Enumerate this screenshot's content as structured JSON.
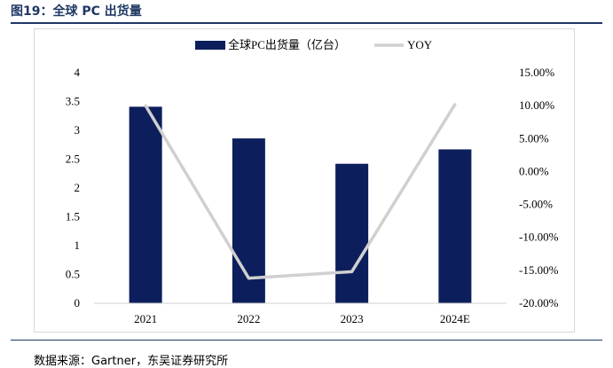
{
  "figure": {
    "title": "图19：全球 PC 出货量"
  },
  "source": "数据来源：Gartner，东吴证券研究所",
  "chart_data": {
    "type": "bar",
    "categories": [
      "2021",
      "2022",
      "2023",
      "2024E"
    ],
    "series": [
      {
        "name": "全球PC出货量（亿台）",
        "kind": "bar",
        "axis": "left",
        "color": "#0c1f5c",
        "values": [
          3.41,
          2.86,
          2.42,
          2.67
        ]
      },
      {
        "name": "YOY",
        "kind": "line",
        "axis": "right",
        "color": "#d0d0d0",
        "values": [
          10.0,
          -16.2,
          -15.2,
          10.2
        ]
      }
    ],
    "y_left": {
      "min": 0,
      "max": 4,
      "ticks": [
        "0",
        "0.5",
        "1",
        "1.5",
        "2",
        "2.5",
        "3",
        "3.5",
        "4"
      ]
    },
    "y_right": {
      "min": -20,
      "max": 15,
      "ticks": [
        "-20.00%",
        "-15.00%",
        "-10.00%",
        "-5.00%",
        "0.00%",
        "5.00%",
        "10.00%",
        "15.00%"
      ]
    },
    "legend": "top-center",
    "grid": false
  }
}
